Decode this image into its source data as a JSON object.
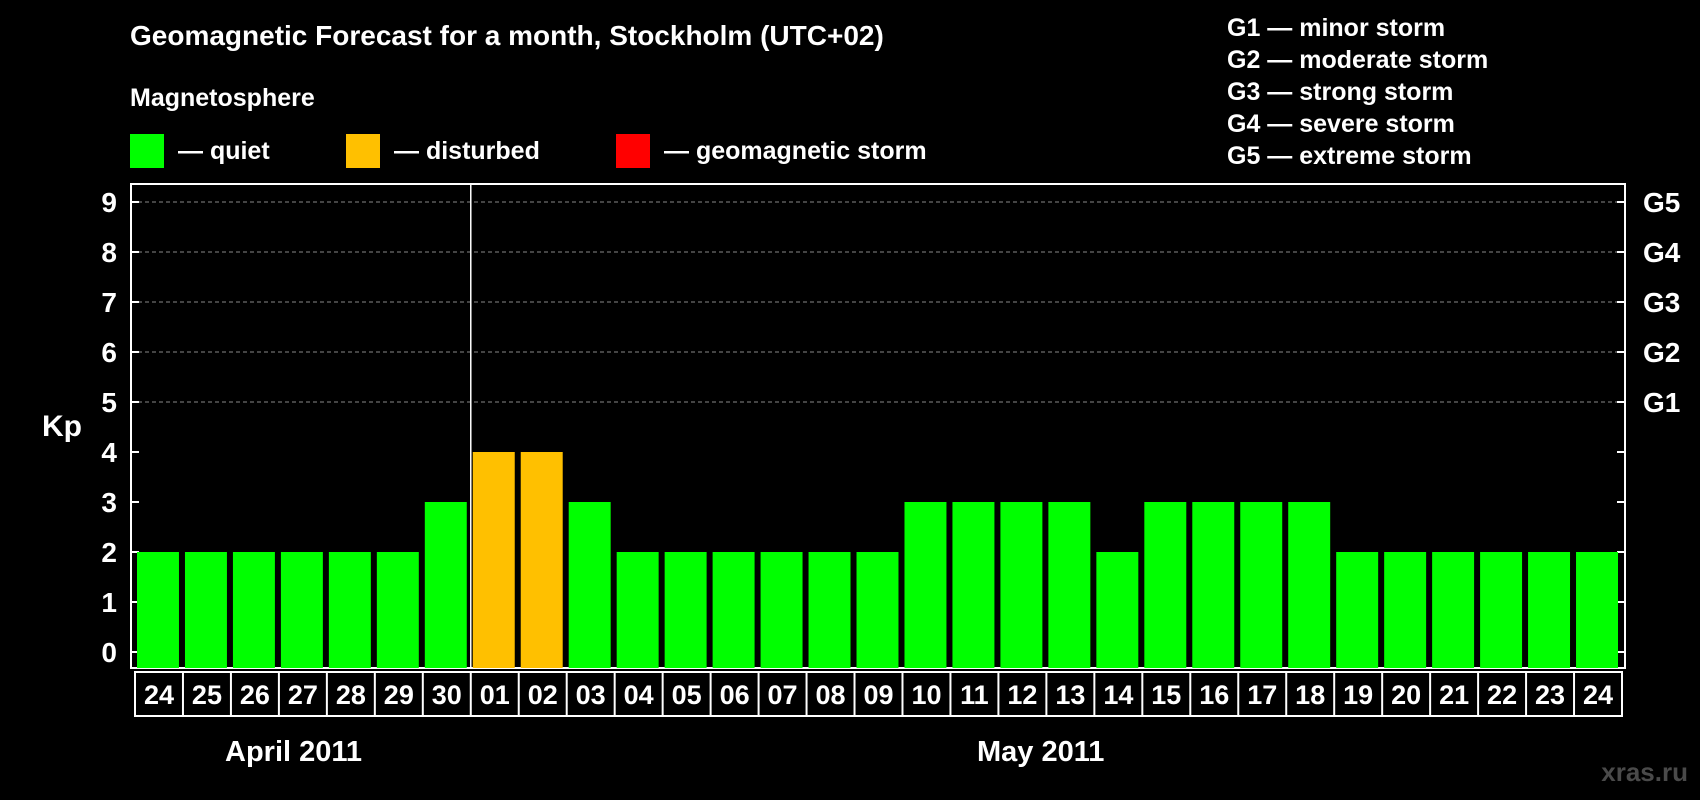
{
  "chart_data": {
    "type": "bar",
    "title": "Geomagnetic Forecast for a month, Stockholm (UTC+02)",
    "ylabel": "Kp",
    "ylim": [
      0,
      9
    ],
    "yticks": [
      "0",
      "1",
      "2",
      "3",
      "4",
      "5",
      "6",
      "7",
      "8",
      "9"
    ],
    "right_axis": [
      {
        "kp": 5,
        "label": "G1"
      },
      {
        "kp": 6,
        "label": "G2"
      },
      {
        "kp": 7,
        "label": "G3"
      },
      {
        "kp": 8,
        "label": "G4"
      },
      {
        "kp": 9,
        "label": "G5"
      }
    ],
    "categories": [
      "24",
      "25",
      "26",
      "27",
      "28",
      "29",
      "30",
      "01",
      "02",
      "03",
      "04",
      "05",
      "06",
      "07",
      "08",
      "09",
      "10",
      "11",
      "12",
      "13",
      "14",
      "15",
      "16",
      "17",
      "18",
      "19",
      "20",
      "21",
      "22",
      "23",
      "24"
    ],
    "values": [
      2,
      2,
      2,
      2,
      2,
      2,
      3,
      4,
      4,
      3,
      2,
      2,
      2,
      2,
      2,
      2,
      3,
      3,
      3,
      3,
      2,
      3,
      3,
      3,
      3,
      2,
      2,
      2,
      2,
      2,
      2
    ],
    "month_groups": [
      {
        "label": "April 2011",
        "count": 7
      },
      {
        "label": "May 2011",
        "count": 24
      }
    ],
    "grid": true
  },
  "legend": {
    "title": "Magnetosphere",
    "items": [
      {
        "label": "— quiet",
        "color": "#00ff00"
      },
      {
        "label": "— disturbed",
        "color": "#ffc000"
      },
      {
        "label": "— geomagnetic storm",
        "color": "#ff0000"
      }
    ]
  },
  "storm_levels": [
    "G1 — minor storm",
    "G2 — moderate storm",
    "G3 — strong storm",
    "G4 — severe storm",
    "G5 — extreme storm"
  ],
  "colors": {
    "quiet": "#00ff00",
    "disturbed": "#ffc000",
    "storm": "#ff0000",
    "grid": "#888888"
  },
  "watermark": "xras.ru"
}
